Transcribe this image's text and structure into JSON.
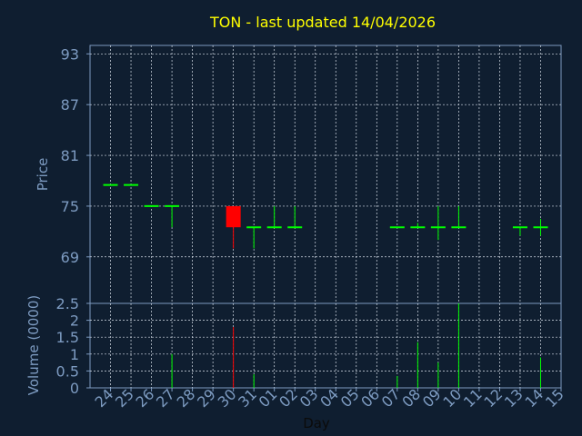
{
  "chart_data": {
    "type": "candlestick",
    "title": "TON - last updated 14/04/2026",
    "xlabel": "Day",
    "price_ylabel": "Price",
    "volume_ylabel": "Volume (0000)",
    "price_ylim": [
      63.5,
      94
    ],
    "price_ticks": [
      "93",
      "87",
      "81",
      "75",
      "69"
    ],
    "price_tick_values": [
      93,
      87,
      81,
      75,
      69
    ],
    "volume_ylim": [
      0,
      2.5
    ],
    "volume_ticks": [
      "0",
      "0.5",
      "1",
      "1.5",
      "2",
      "2.5"
    ],
    "volume_tick_values": [
      0,
      0.5,
      1,
      1.5,
      2,
      2.5
    ],
    "x_ticks": [
      "24",
      "25",
      "26",
      "27",
      "28",
      "29",
      "30",
      "31",
      "01",
      "02",
      "03",
      "04",
      "05",
      "06",
      "07",
      "08",
      "09",
      "10",
      "11",
      "12",
      "13",
      "14",
      "15"
    ],
    "grid": true,
    "colors": {
      "background": "#0f1e30",
      "axis": "#7d9bc1",
      "grid": "#d8e0ea",
      "title": "#ffff00",
      "up": "#00ff00",
      "down": "#ff0000"
    },
    "candles": [
      {
        "day": "24",
        "open": 77.5,
        "high": 77.5,
        "low": 77.5,
        "close": 77.5,
        "volume": 0
      },
      {
        "day": "25",
        "open": 77.5,
        "high": 77.5,
        "low": 77.5,
        "close": 77.5,
        "volume": 0
      },
      {
        "day": "26",
        "open": 75,
        "high": 75,
        "low": 75,
        "close": 75,
        "volume": 0
      },
      {
        "day": "27",
        "open": 75,
        "high": 75,
        "low": 72.5,
        "close": 75,
        "volume": 1.0
      },
      {
        "day": "30",
        "open": 75,
        "high": 75,
        "low": 70,
        "close": 72.5,
        "volume": 1.8
      },
      {
        "day": "31",
        "open": 72.5,
        "high": 72.5,
        "low": 70,
        "close": 72.5,
        "volume": 0.4
      },
      {
        "day": "01",
        "open": 72.5,
        "high": 75,
        "low": 72.5,
        "close": 72.5,
        "volume": 0
      },
      {
        "day": "02",
        "open": 72.5,
        "high": 75,
        "low": 72.5,
        "close": 72.5,
        "volume": 0
      },
      {
        "day": "07",
        "open": 72.5,
        "high": 72.5,
        "low": 72.5,
        "close": 72.5,
        "volume": 0.35
      },
      {
        "day": "08",
        "open": 72.5,
        "high": 73,
        "low": 72.5,
        "close": 72.5,
        "volume": 1.35
      },
      {
        "day": "09",
        "open": 72.5,
        "high": 75,
        "low": 71,
        "close": 72.5,
        "volume": 0.75
      },
      {
        "day": "10",
        "open": 72.5,
        "high": 75,
        "low": 72.5,
        "close": 72.5,
        "volume": 2.5
      },
      {
        "day": "13",
        "open": 72.5,
        "high": 72.5,
        "low": 71.5,
        "close": 72.5,
        "volume": 0
      },
      {
        "day": "14",
        "open": 72.5,
        "high": 73.5,
        "low": 71.5,
        "close": 72.5,
        "volume": 0.9
      }
    ]
  }
}
